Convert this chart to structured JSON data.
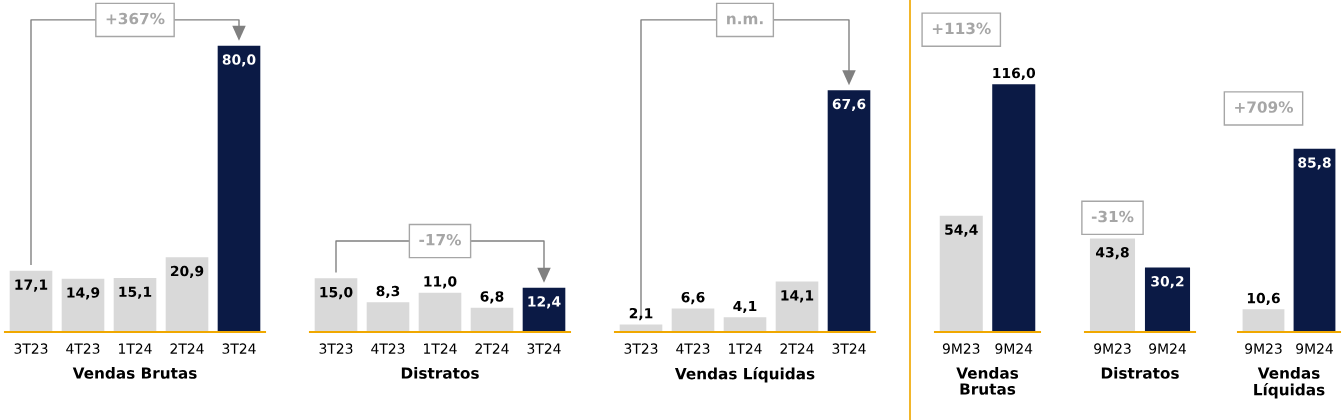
{
  "chart_data": [
    {
      "type": "bar",
      "title": "Vendas Brutas",
      "categories": [
        "3T23",
        "4T23",
        "1T24",
        "2T24",
        "3T24"
      ],
      "values": [
        17.1,
        14.9,
        15.1,
        20.9,
        80.0
      ],
      "value_labels": [
        "17,1",
        "14,9",
        "15,1",
        "20,9",
        "80,0"
      ],
      "colors": [
        "#d9d9d9",
        "#d9d9d9",
        "#d9d9d9",
        "#d9d9d9",
        "#0b1a45"
      ],
      "annotations": [
        "+367%"
      ]
    },
    {
      "type": "bar",
      "title": "Distratos",
      "categories": [
        "3T23",
        "4T23",
        "1T24",
        "2T24",
        "3T24"
      ],
      "values": [
        15.0,
        8.3,
        11.0,
        6.8,
        12.4
      ],
      "value_labels": [
        "15,0",
        "8,3",
        "11,0",
        "6,8",
        "12,4"
      ],
      "colors": [
        "#d9d9d9",
        "#d9d9d9",
        "#d9d9d9",
        "#d9d9d9",
        "#0b1a45"
      ],
      "annotations": [
        "-17%"
      ]
    },
    {
      "type": "bar",
      "title": "Vendas Líquidas",
      "categories": [
        "3T23",
        "4T23",
        "1T24",
        "2T24",
        "3T24"
      ],
      "values": [
        2.1,
        6.6,
        4.1,
        14.1,
        67.6
      ],
      "value_labels": [
        "2,1",
        "6,6",
        "4,1",
        "14,1",
        "67,6"
      ],
      "colors": [
        "#d9d9d9",
        "#d9d9d9",
        "#d9d9d9",
        "#d9d9d9",
        "#0b1a45"
      ],
      "annotations": [
        "n.m."
      ]
    },
    {
      "type": "bar",
      "title": "Vendas Brutas",
      "categories": [
        "9M23",
        "9M24"
      ],
      "values": [
        54.4,
        116.0
      ],
      "value_labels": [
        "54,4",
        "116,0"
      ],
      "colors": [
        "#d9d9d9",
        "#0b1a45"
      ],
      "annotations": [
        "+113%"
      ]
    },
    {
      "type": "bar",
      "title": "Distratos",
      "categories": [
        "9M23",
        "9M24"
      ],
      "values": [
        43.8,
        30.2
      ],
      "value_labels": [
        "43,8",
        "30,2"
      ],
      "colors": [
        "#d9d9d9",
        "#0b1a45"
      ],
      "annotations": [
        "-31%"
      ]
    },
    {
      "type": "bar",
      "title": "Vendas Líquidas",
      "categories": [
        "9M23",
        "9M24"
      ],
      "values": [
        10.6,
        85.8
      ],
      "value_labels": [
        "10,6",
        "85,8"
      ],
      "colors": [
        "#d9d9d9",
        "#0b1a45"
      ],
      "annotations": [
        "+709%"
      ]
    }
  ]
}
